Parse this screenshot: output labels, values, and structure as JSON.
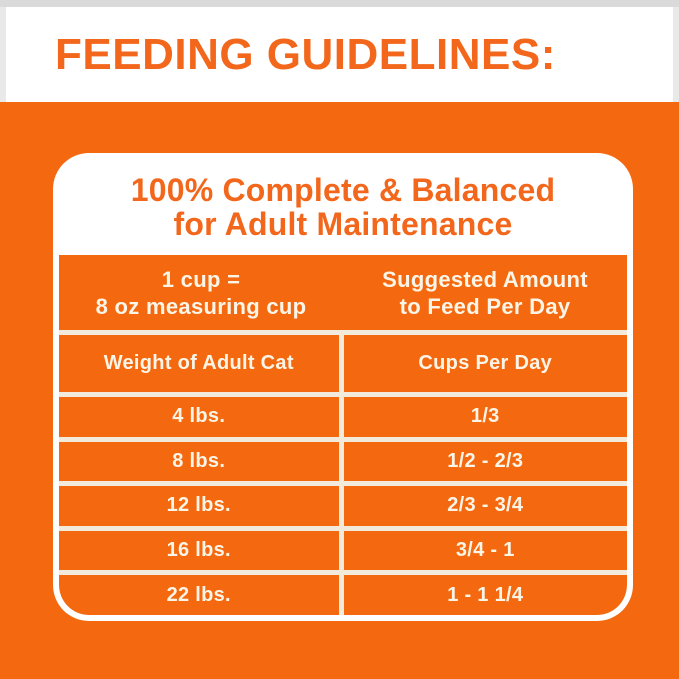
{
  "header": {
    "title": "FEEDING GUIDELINES:"
  },
  "panel": {
    "title_line1": "100% Complete & Balanced",
    "title_line2": "for Adult Maintenance",
    "intro": {
      "left_line1": "1 cup =",
      "left_line2": "8 oz measuring cup",
      "right_line1": "Suggested Amount",
      "right_line2": "to Feed Per Day"
    },
    "table": {
      "col_weight": "Weight of Adult Cat",
      "col_cups": "Cups Per Day",
      "rows": [
        {
          "weight": "4 lbs.",
          "cups": "1/3"
        },
        {
          "weight": "8 lbs.",
          "cups": "1/2 - 2/3"
        },
        {
          "weight": "12 lbs.",
          "cups": "2/3 - 3/4"
        },
        {
          "weight": "16 lbs.",
          "cups": "3/4 - 1"
        },
        {
          "weight": "22 lbs.",
          "cups": "1 - 1 1/4"
        }
      ]
    }
  },
  "colors": {
    "orange_fill": "#F4690F",
    "heading_orange": "#F2671B",
    "grid_line_cream": "#F2EADA",
    "cell_text": "#FBF5E8",
    "top_strip_gray": "#DADADA"
  }
}
